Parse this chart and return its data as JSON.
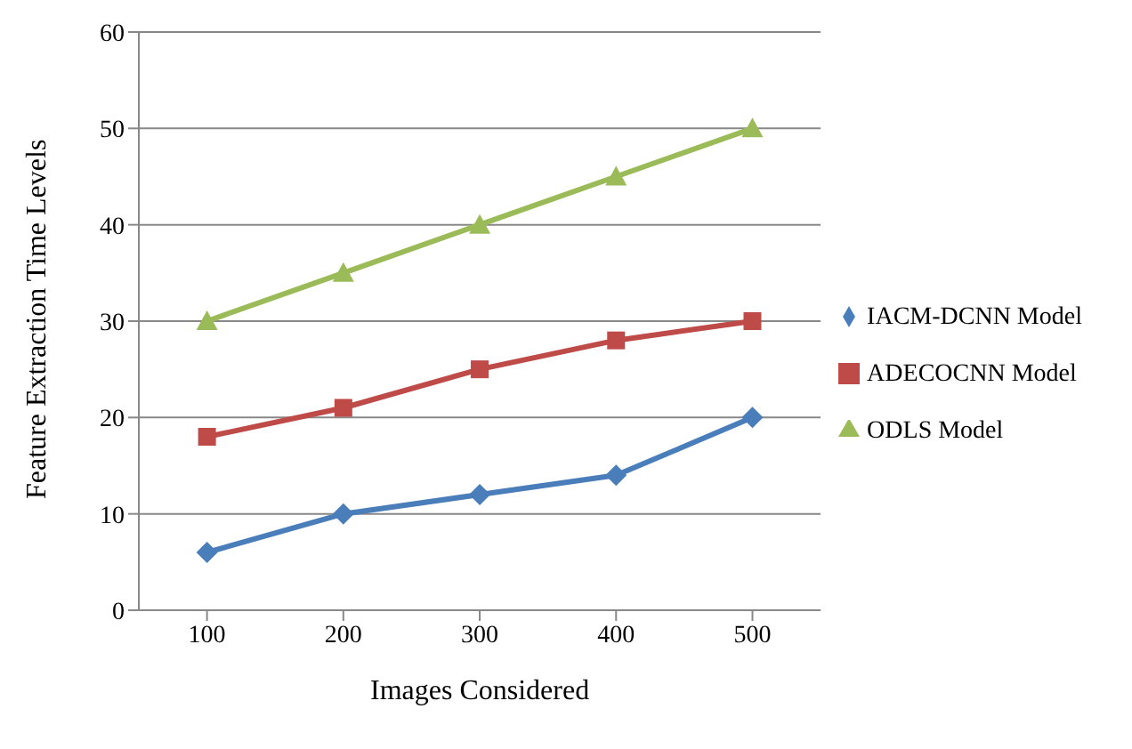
{
  "chart_data": {
    "type": "line",
    "xlabel": "Images Considered",
    "ylabel": "Feature Extraction Time Levels",
    "categories": [
      "100",
      "200",
      "300",
      "400",
      "500"
    ],
    "series": [
      {
        "name": "IACM-DCNN Model",
        "color": "#4a7ebb",
        "marker": "diamond",
        "values": [
          6,
          10,
          12,
          14,
          20
        ]
      },
      {
        "name": "ADECOCNN Model",
        "color": "#be4b48",
        "marker": "square",
        "values": [
          18,
          21,
          25,
          28,
          30
        ]
      },
      {
        "name": "ODLS Model",
        "color": "#9bbb59",
        "marker": "triangle",
        "values": [
          30,
          35,
          40,
          45,
          50
        ]
      }
    ],
    "ylim": [
      0,
      60
    ],
    "yticks": [
      0,
      10,
      20,
      30,
      40,
      50,
      60
    ],
    "grid": "y",
    "legend": "right",
    "line_style": "solid"
  }
}
